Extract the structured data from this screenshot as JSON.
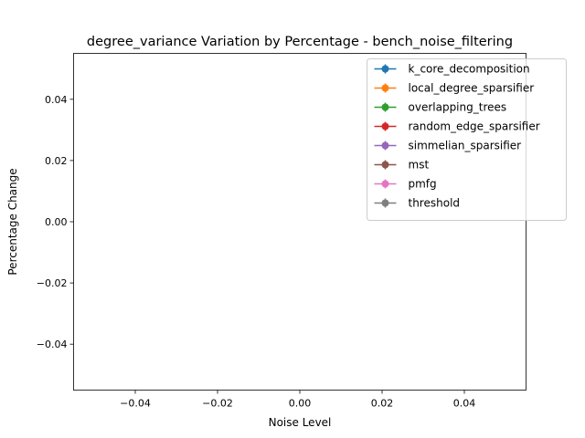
{
  "chart_data": {
    "type": "line",
    "title": "degree_variance Variation by Percentage - bench_noise_filtering",
    "xlabel": "Noise Level",
    "ylabel": "Percentage Change",
    "xlim": [
      -0.055,
      0.055
    ],
    "ylim": [
      -0.055,
      0.055
    ],
    "xticks": [
      -0.04,
      -0.02,
      0.0,
      0.02,
      0.04
    ],
    "xtick_labels": [
      "−0.04",
      "−0.02",
      "0.00",
      "0.02",
      "0.04"
    ],
    "yticks": [
      -0.04,
      -0.02,
      0.0,
      0.02,
      0.04
    ],
    "ytick_labels": [
      "−0.04",
      "−0.02",
      "0.00",
      "0.02",
      "0.04"
    ],
    "grid": false,
    "legend_position": "top-right",
    "series": [
      {
        "name": "k_core_decomposition",
        "color": "#1f77b4",
        "marker": "circle",
        "x": [],
        "y": []
      },
      {
        "name": "local_degree_sparsifier",
        "color": "#ff7f0e",
        "marker": "circle",
        "x": [],
        "y": []
      },
      {
        "name": "overlapping_trees",
        "color": "#2ca02c",
        "marker": "circle",
        "x": [],
        "y": []
      },
      {
        "name": "random_edge_sparsifier",
        "color": "#d62728",
        "marker": "circle",
        "x": [],
        "y": []
      },
      {
        "name": "simmelian_sparsifier",
        "color": "#9467bd",
        "marker": "circle",
        "x": [],
        "y": []
      },
      {
        "name": "mst",
        "color": "#8c564b",
        "marker": "circle",
        "x": [],
        "y": []
      },
      {
        "name": "pmfg",
        "color": "#e377c2",
        "marker": "circle",
        "x": [],
        "y": []
      },
      {
        "name": "threshold",
        "color": "#7f7f7f",
        "marker": "circle",
        "x": [],
        "y": []
      }
    ]
  }
}
